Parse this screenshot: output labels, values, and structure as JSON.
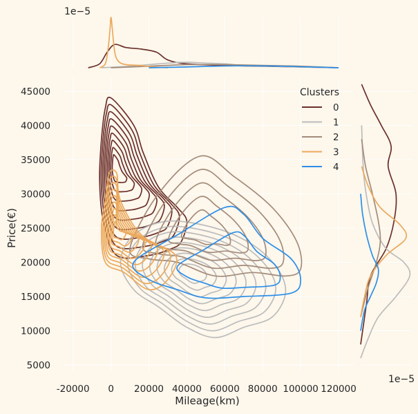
{
  "chart_data": {
    "type": "kde_jointplot",
    "xlabel": "Mileage(km)",
    "ylabel": "Price(€)",
    "xlim": [
      -25000,
      128000
    ],
    "ylim": [
      4000,
      47000
    ],
    "x_ticks": [
      -20000,
      0,
      20000,
      40000,
      60000,
      80000,
      100000,
      120000
    ],
    "y_ticks": [
      5000,
      10000,
      15000,
      20000,
      25000,
      30000,
      35000,
      40000,
      45000
    ],
    "top_marginal_scale_label": "1e−5",
    "right_marginal_scale_label": "1e−5",
    "legend": {
      "title": "Clusters",
      "placement": "top-right"
    },
    "grid": true,
    "series": [
      {
        "name": "0",
        "color": "#6b2f2a",
        "levels": 9,
        "center": [
          2000,
          34000
        ],
        "spread": [
          8000,
          6500
        ],
        "lean": -0.25,
        "outer_contour": [
          [
            0,
            44000
          ],
          [
            12000,
            40000
          ],
          [
            17000,
            36000
          ],
          [
            25000,
            31000
          ],
          [
            35000,
            28000
          ],
          [
            40000,
            26000
          ],
          [
            37000,
            23000
          ],
          [
            32000,
            22000
          ],
          [
            20000,
            21000
          ],
          [
            3000,
            21000
          ],
          [
            -4000,
            26000
          ],
          [
            -6000,
            32000
          ],
          [
            -5000,
            38000
          ],
          [
            -3000,
            42500
          ]
        ],
        "x_marginal": [
          [
            -12000,
            0.0
          ],
          [
            -6000,
            0.5
          ],
          [
            -2000,
            2.0
          ],
          [
            2000,
            3.0
          ],
          [
            8000,
            2.6
          ],
          [
            16000,
            2.4
          ],
          [
            24000,
            2.0
          ],
          [
            30000,
            1.0
          ],
          [
            40000,
            0.5
          ],
          [
            60000,
            0.3
          ],
          [
            80000,
            0.2
          ],
          [
            100000,
            0.1
          ],
          [
            120000,
            0.0
          ]
        ],
        "y_marginal": [
          [
            8000,
            0.0
          ],
          [
            14000,
            0.6
          ],
          [
            18000,
            1.0
          ],
          [
            22000,
            2.6
          ],
          [
            26000,
            3.4
          ],
          [
            30000,
            3.6
          ],
          [
            34000,
            2.8
          ],
          [
            37000,
            3.1
          ],
          [
            40000,
            2.1
          ],
          [
            43000,
            1.0
          ],
          [
            46000,
            0.1
          ]
        ]
      },
      {
        "name": "1",
        "color": "#bcbcbc",
        "levels": 9,
        "center": [
          42000,
          18500
        ],
        "spread": [
          18000,
          3500
        ],
        "lean": 0.0,
        "outer_contour": [
          [
            12000,
            24000
          ],
          [
            30000,
            26000
          ],
          [
            55000,
            25000
          ],
          [
            75000,
            22500
          ],
          [
            88000,
            19000
          ],
          [
            92000,
            15500
          ],
          [
            85000,
            12000
          ],
          [
            70000,
            10500
          ],
          [
            55000,
            9000
          ],
          [
            40000,
            10500
          ],
          [
            25000,
            13500
          ],
          [
            12000,
            16000
          ],
          [
            5000,
            20000
          ]
        ],
        "x_marginal": [
          [
            -5000,
            0.0
          ],
          [
            10000,
            0.2
          ],
          [
            20000,
            0.4
          ],
          [
            30000,
            0.6
          ],
          [
            40000,
            0.7
          ],
          [
            50000,
            0.6
          ],
          [
            60000,
            0.5
          ],
          [
            70000,
            0.3
          ],
          [
            85000,
            0.2
          ],
          [
            100000,
            0.1
          ],
          [
            120000,
            0.0
          ]
        ],
        "y_marginal": [
          [
            6000,
            0.0
          ],
          [
            9000,
            0.8
          ],
          [
            12000,
            1.8
          ],
          [
            15000,
            3.6
          ],
          [
            18000,
            5.0
          ],
          [
            20000,
            4.4
          ],
          [
            22000,
            2.6
          ],
          [
            25000,
            1.4
          ],
          [
            28000,
            0.8
          ],
          [
            33000,
            0.3
          ],
          [
            40000,
            0.1
          ]
        ]
      },
      {
        "name": "2",
        "color": "#a38b79",
        "levels": 5,
        "center": [
          48000,
          24500
        ],
        "spread": [
          22000,
          5000
        ],
        "lean": -0.1,
        "outer_contour": [
          [
            10000,
            22000
          ],
          [
            25000,
            30000
          ],
          [
            47000,
            35500
          ],
          [
            65000,
            32500
          ],
          [
            85000,
            28000
          ],
          [
            98000,
            23000
          ],
          [
            100000,
            19000
          ],
          [
            92000,
            18000
          ],
          [
            75000,
            18500
          ],
          [
            55000,
            18000
          ],
          [
            35000,
            20000
          ],
          [
            20000,
            20500
          ]
        ],
        "x_marginal": [
          [
            0,
            0.0
          ],
          [
            20000,
            0.2
          ],
          [
            40000,
            0.4
          ],
          [
            60000,
            0.4
          ],
          [
            80000,
            0.3
          ],
          [
            100000,
            0.2
          ],
          [
            120000,
            0.0
          ]
        ],
        "y_marginal": [
          [
            12000,
            0.0
          ],
          [
            16000,
            0.7
          ],
          [
            20000,
            1.6
          ],
          [
            23000,
            2.0
          ],
          [
            26000,
            1.8
          ],
          [
            30000,
            1.2
          ],
          [
            34000,
            0.5
          ],
          [
            38000,
            0.1
          ]
        ]
      },
      {
        "name": "3",
        "color": "#eba95b",
        "levels": 9,
        "center": [
          2500,
          24500
        ],
        "spread": [
          5000,
          3500
        ],
        "lean": 0.3,
        "outer_contour": [
          [
            -1000,
            33000
          ],
          [
            3000,
            33000
          ],
          [
            5000,
            29000
          ],
          [
            16000,
            24000
          ],
          [
            34000,
            21000
          ],
          [
            30000,
            17500
          ],
          [
            20000,
            16000
          ],
          [
            7000,
            18500
          ],
          [
            -3000,
            20000
          ],
          [
            -5000,
            25000
          ],
          [
            -3000,
            29000
          ]
        ],
        "x_marginal": [
          [
            -6000,
            0.0
          ],
          [
            -3000,
            0.5
          ],
          [
            -1500,
            2.5
          ],
          [
            -500,
            5.0
          ],
          [
            0,
            6.5
          ],
          [
            700,
            5.0
          ],
          [
            2000,
            2.0
          ],
          [
            4000,
            0.8
          ],
          [
            8000,
            0.4
          ],
          [
            15000,
            0.3
          ],
          [
            22000,
            0.1
          ],
          [
            30000,
            0.0
          ]
        ],
        "y_marginal": [
          [
            12000,
            0.0
          ],
          [
            15000,
            0.4
          ],
          [
            18000,
            1.0
          ],
          [
            21000,
            2.6
          ],
          [
            23500,
            4.6
          ],
          [
            25500,
            4.0
          ],
          [
            28000,
            2.0
          ],
          [
            31000,
            0.8
          ],
          [
            34000,
            0.1
          ]
        ]
      },
      {
        "name": "4",
        "color": "#2b8ee8",
        "levels": 2,
        "center": [
          72000,
          18500
        ],
        "spread": [
          22000,
          4000
        ],
        "lean": 0.0,
        "outer_contour": [
          [
            12000,
            20000
          ],
          [
            35000,
            24000
          ],
          [
            60000,
            28000
          ],
          [
            70000,
            27000
          ],
          [
            80000,
            23500
          ],
          [
            95000,
            20500
          ],
          [
            100000,
            17500
          ],
          [
            95000,
            15500
          ],
          [
            70000,
            15000
          ],
          [
            50000,
            14800
          ],
          [
            35000,
            16000
          ],
          [
            20000,
            17500
          ]
        ],
        "x_marginal": [
          [
            20000,
            0.0
          ],
          [
            40000,
            0.1
          ],
          [
            55000,
            0.2
          ],
          [
            70000,
            0.25
          ],
          [
            90000,
            0.2
          ],
          [
            105000,
            0.1
          ],
          [
            120000,
            0.0
          ]
        ],
        "y_marginal": [
          [
            10000,
            0.0
          ],
          [
            13000,
            0.4
          ],
          [
            15000,
            1.0
          ],
          [
            17000,
            1.6
          ],
          [
            19000,
            1.8
          ],
          [
            21000,
            1.2
          ],
          [
            24000,
            0.6
          ],
          [
            27000,
            0.2
          ],
          [
            30000,
            0.0
          ]
        ]
      }
    ]
  }
}
